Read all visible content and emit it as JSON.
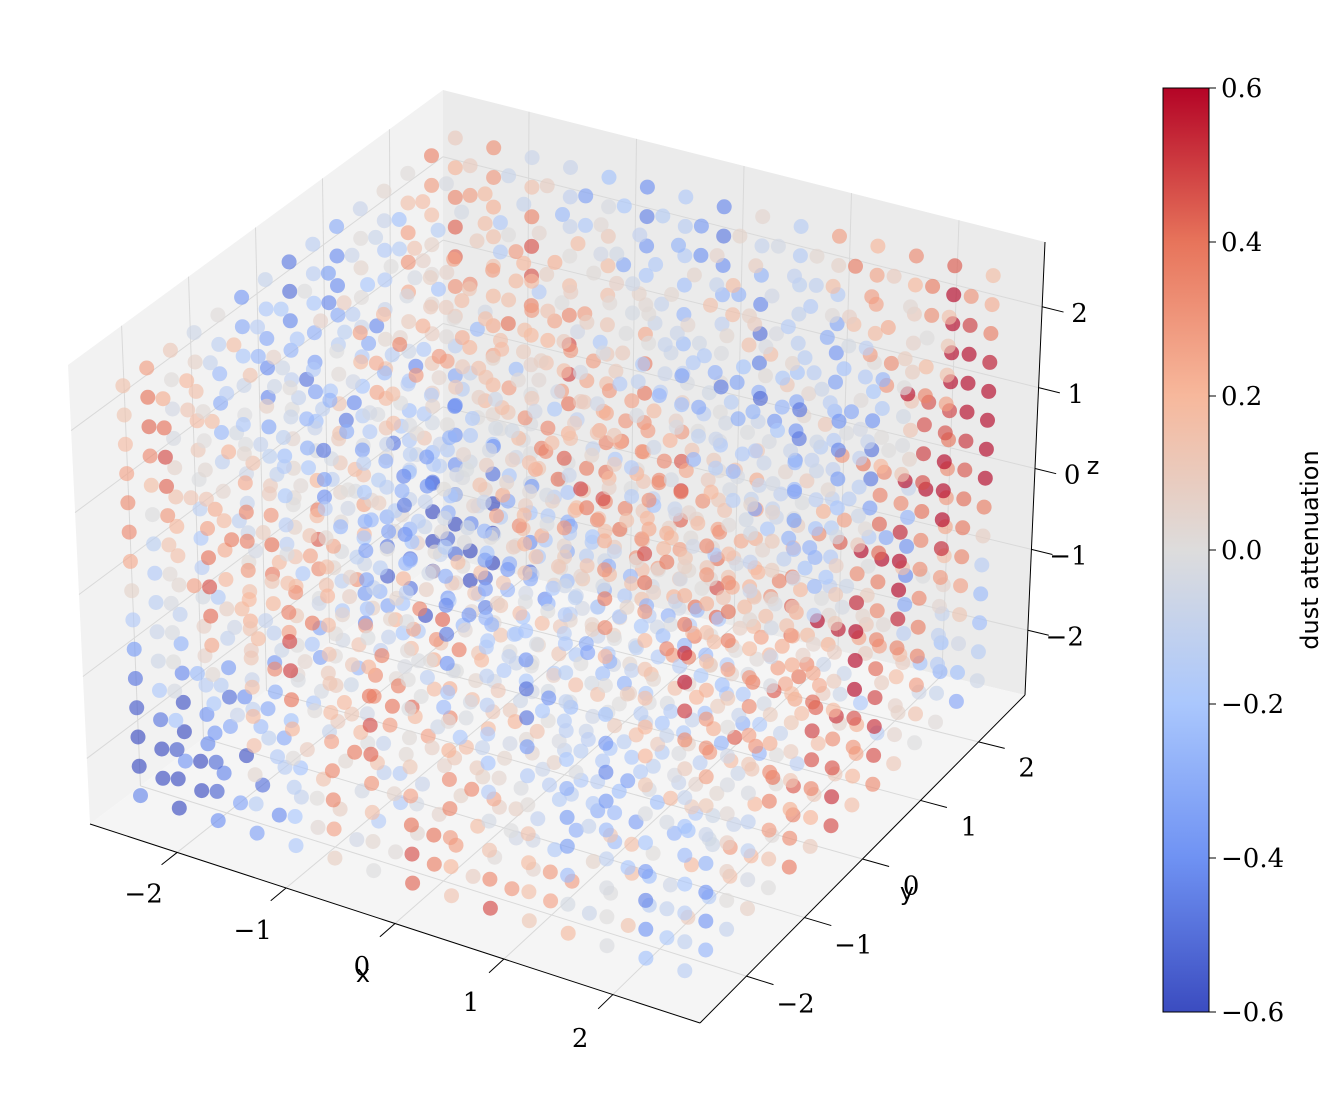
{
  "chart_data": {
    "type": "scatter",
    "projection": "3d",
    "colormap": "coolwarm",
    "marker_alpha": 0.65,
    "xlabel": "x",
    "ylabel": "y",
    "zlabel": "z",
    "xlim": [
      -2.8,
      2.8
    ],
    "ylim": [
      -2.8,
      2.8
    ],
    "zlim": [
      -2.8,
      2.8
    ],
    "xticks": [
      -2,
      -1,
      0,
      1,
      2
    ],
    "yticks": [
      -2,
      -1,
      0,
      1,
      2
    ],
    "zticks": [
      -2,
      -1,
      0,
      1,
      2
    ],
    "xtick_labels": [
      "−2",
      "−1",
      "0",
      "1",
      "2"
    ],
    "ytick_labels": [
      "−2",
      "−1",
      "0",
      "1",
      "2"
    ],
    "ztick_labels": [
      "−2",
      "−1",
      "0",
      "1",
      "2"
    ],
    "grid": true,
    "points": {
      "grid_range": [
        -2.5,
        2.5
      ],
      "grid_points_per_axis": 15,
      "color_value": "dust attenuation"
    },
    "colorbar": {
      "label": "dust attenuation",
      "range": [
        -0.6,
        0.6
      ],
      "ticks": [
        -0.6,
        -0.4,
        -0.2,
        0.0,
        0.2,
        0.4,
        0.6
      ],
      "tick_labels": [
        "−0.6",
        "−0.4",
        "−0.2",
        "0.0",
        "0.2",
        "0.4",
        "0.6"
      ],
      "colors": [
        "#3b4cc0",
        "#6f92f3",
        "#aac7fd",
        "#dddcdc",
        "#f7b89c",
        "#e7745b",
        "#b40426"
      ]
    }
  }
}
